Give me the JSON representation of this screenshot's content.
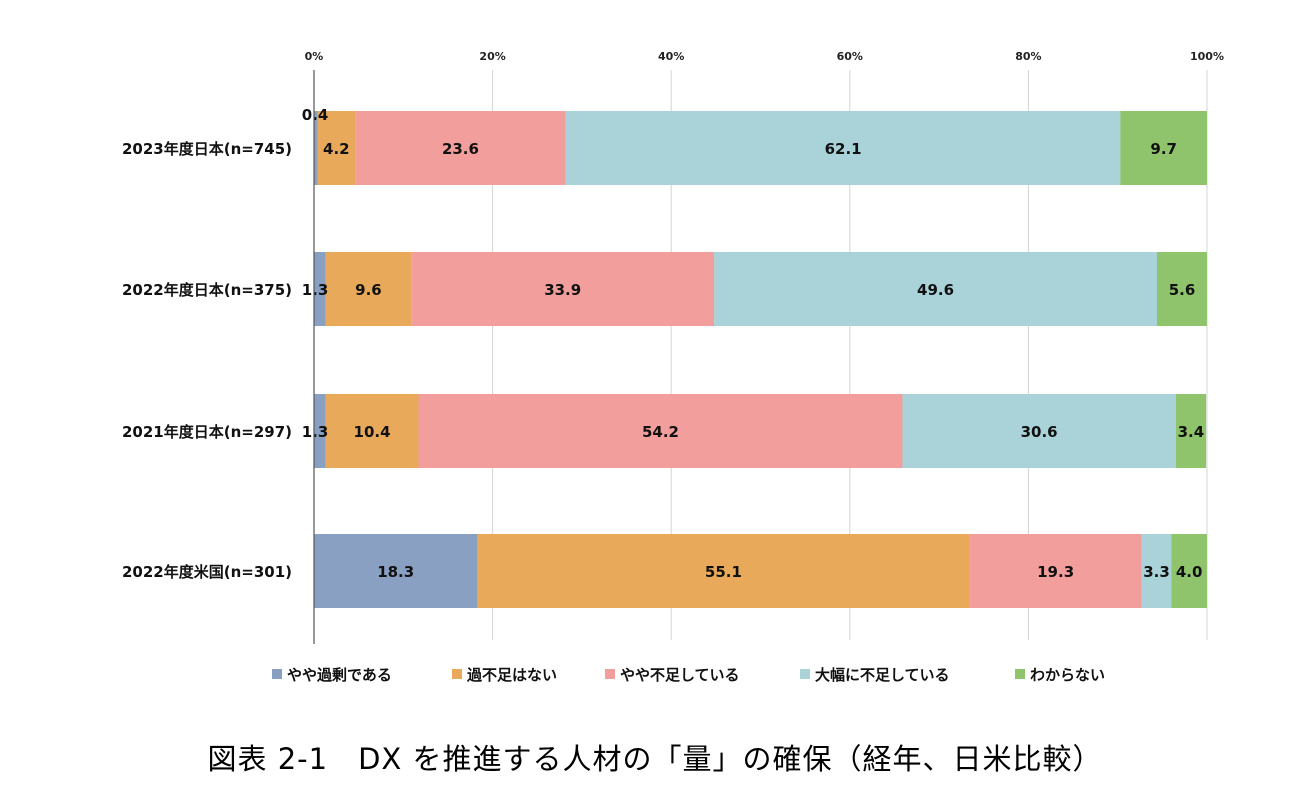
{
  "caption": "図表 2-1　DX を推進する人材の「量」の確保（経年、日米比較）",
  "chart_data": {
    "type": "bar",
    "orientation": "horizontal",
    "stacked": true,
    "percent_stacked": true,
    "xlim": [
      0,
      100
    ],
    "x_ticks": [
      "0%",
      "20%",
      "40%",
      "60%",
      "80%",
      "100%"
    ],
    "x_axis_position": "top",
    "grid": true,
    "legend_position": "bottom",
    "categories": [
      "2023年度日本(n=745)",
      "2022年度日本(n=375)",
      "2021年度日本(n=297)",
      "2022年度米国(n=301)"
    ],
    "value_labels": [
      [
        "0.4",
        "4.2",
        "23.6",
        "62.1",
        "9.7"
      ],
      [
        "1.3",
        "9.6",
        "33.9",
        "49.6",
        "5.6"
      ],
      [
        "1.3",
        "10.4",
        "54.2",
        "30.6",
        "3.4"
      ],
      [
        "18.3",
        "55.1",
        "19.3",
        "3.3",
        "4.0"
      ]
    ],
    "series": [
      {
        "name": "やや過剰である",
        "color": "#8aa0c2",
        "values": [
          0.4,
          1.3,
          1.3,
          18.3
        ]
      },
      {
        "name": "過不足はない",
        "color": "#e8a95a",
        "values": [
          4.2,
          9.6,
          10.4,
          55.1
        ]
      },
      {
        "name": "やや不足している",
        "color": "#f19e9c",
        "values": [
          23.6,
          33.9,
          54.2,
          19.3
        ]
      },
      {
        "name": "大幅に不足している",
        "color": "#a9d3d9",
        "values": [
          62.1,
          49.6,
          30.6,
          3.3
        ]
      },
      {
        "name": "わからない",
        "color": "#8fc36c",
        "values": [
          9.7,
          5.6,
          3.4,
          4.0
        ]
      }
    ]
  }
}
